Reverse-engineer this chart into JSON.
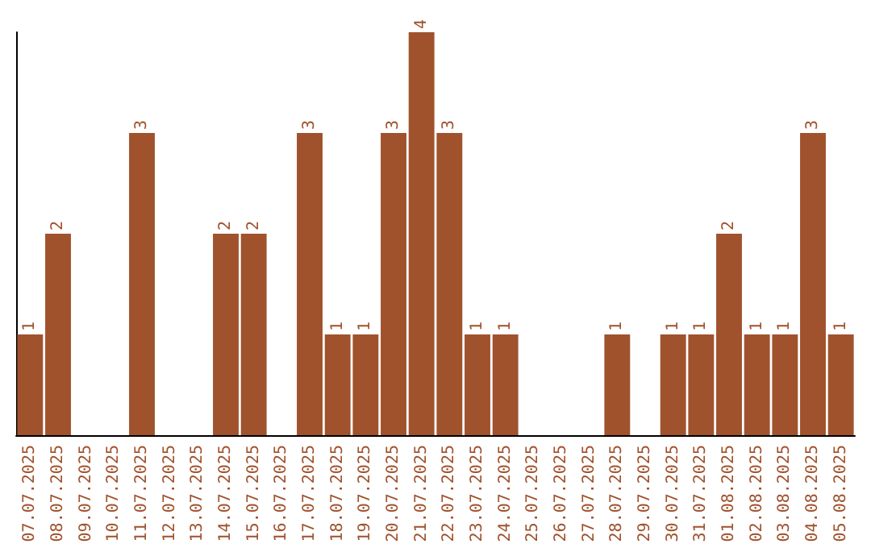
{
  "chart_data": {
    "type": "bar",
    "categories": [
      "07.07.2025",
      "08.07.2025",
      "09.07.2025",
      "10.07.2025",
      "11.07.2025",
      "12.07.2025",
      "13.07.2025",
      "14.07.2025",
      "15.07.2025",
      "16.07.2025",
      "17.07.2025",
      "18.07.2025",
      "19.07.2025",
      "20.07.2025",
      "21.07.2025",
      "22.07.2025",
      "23.07.2025",
      "24.07.2025",
      "25.07.2025",
      "26.07.2025",
      "27.07.2025",
      "28.07.2025",
      "29.07.2025",
      "30.07.2025",
      "31.07.2025",
      "01.08.2025",
      "02.08.2025",
      "03.08.2025",
      "04.08.2025",
      "05.08.2025"
    ],
    "values": [
      1,
      2,
      0,
      0,
      3,
      0,
      0,
      2,
      2,
      0,
      3,
      1,
      1,
      3,
      4,
      3,
      1,
      1,
      0,
      0,
      0,
      1,
      0,
      1,
      1,
      2,
      1,
      1,
      3,
      1
    ],
    "value_labels": [
      "1",
      "2",
      null,
      null,
      "3",
      null,
      null,
      "2",
      "2",
      null,
      "3",
      "1",
      "1",
      "3",
      "4",
      "3",
      "1",
      "1",
      null,
      null,
      null,
      "1",
      null,
      "1",
      "1",
      "2",
      "1",
      "1",
      "3",
      "1"
    ],
    "color": "#a0522d",
    "tick_labels": "x"
  }
}
